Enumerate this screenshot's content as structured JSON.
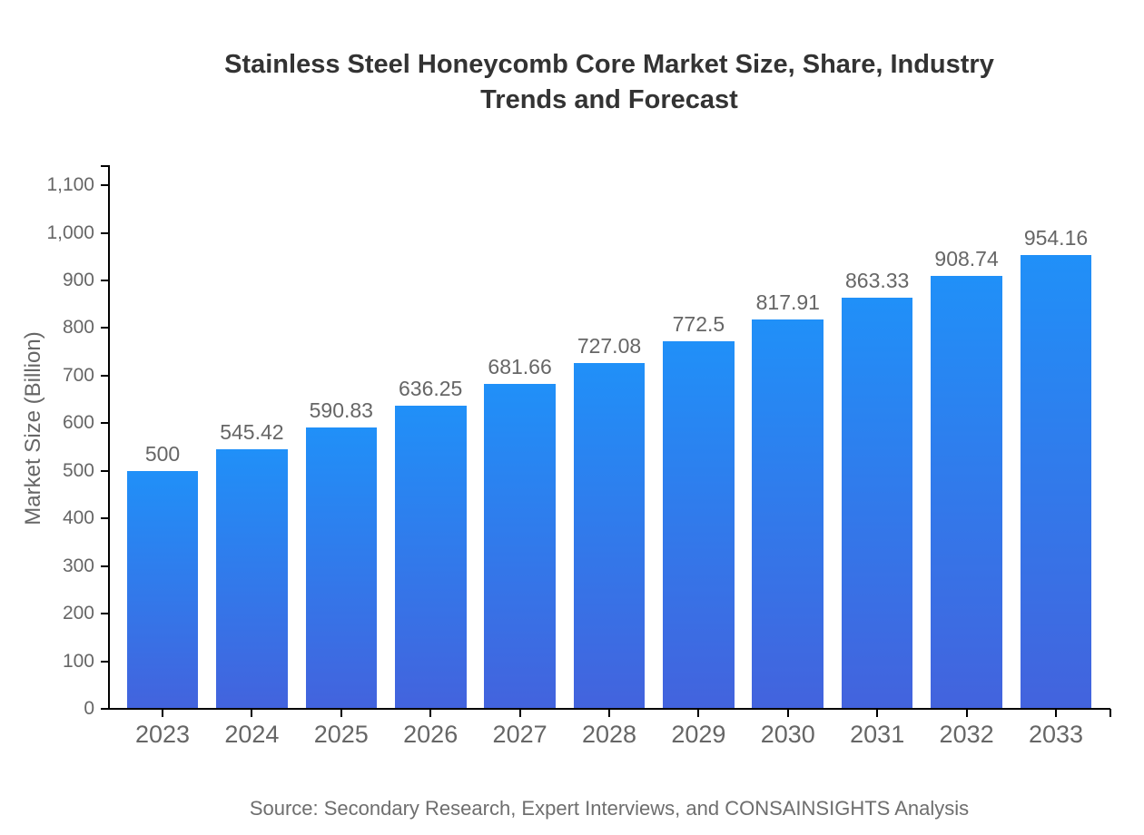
{
  "chart_data": {
    "type": "bar",
    "title": "Stainless Steel Honeycomb Core Market Size, Share, Industry Trends and Forecast",
    "xlabel": "",
    "ylabel": "Market Size (Billion)",
    "categories": [
      "2023",
      "2024",
      "2025",
      "2026",
      "2027",
      "2028",
      "2029",
      "2030",
      "2031",
      "2032",
      "2033"
    ],
    "values": [
      500,
      545.42,
      590.83,
      636.25,
      681.66,
      727.08,
      772.5,
      817.91,
      863.33,
      908.74,
      954.16
    ],
    "value_labels": [
      "500",
      "545.42",
      "590.83",
      "636.25",
      "681.66",
      "727.08",
      "772.5",
      "817.91",
      "863.33",
      "908.74",
      "954.16"
    ],
    "yticks": [
      0,
      100,
      200,
      300,
      400,
      500,
      600,
      700,
      800,
      900,
      1000,
      1100
    ],
    "ylim": [
      0,
      1142
    ],
    "grid": false,
    "legend": "none",
    "bar_gradient_top": "#2090F8",
    "bar_gradient_bottom": "#4363DD",
    "colors": {
      "title": "#333333",
      "tick_labels": "#666666",
      "value_labels": "#666666",
      "axis": "#000000",
      "source": "#6e6e6e"
    },
    "source": "Source: Secondary Research, Expert Interviews, and CONSAINSIGHTS Analysis"
  }
}
